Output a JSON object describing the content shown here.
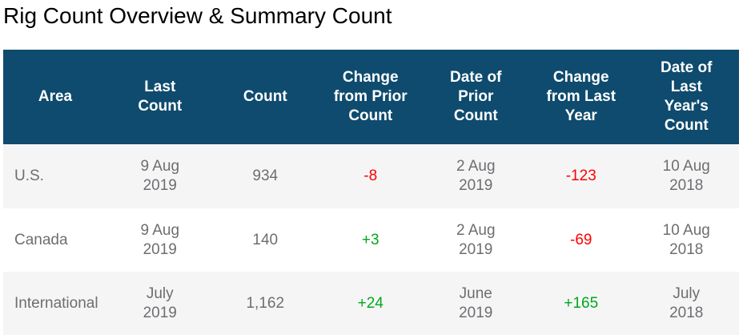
{
  "page": {
    "title": "Rig Count Overview & Summary Count"
  },
  "colors": {
    "header_bg": "#0e4b6e",
    "header_text": "#ffffff",
    "body_text": "#6d6e71",
    "row_alt_bg": "#f5f5f6",
    "positive": "#00a81c",
    "negative": "#ff0000"
  },
  "table": {
    "columns": [
      {
        "label": "Area"
      },
      {
        "label": "Last\nCount"
      },
      {
        "label": "Count"
      },
      {
        "label": "Change\nfrom Prior\nCount"
      },
      {
        "label": "Date of\nPrior\nCount"
      },
      {
        "label": "Change\nfrom Last\nYear"
      },
      {
        "label": "Date of\nLast\nYear's\nCount"
      }
    ],
    "rows": [
      {
        "area": "U.S.",
        "last_count_date": "9 Aug\n2019",
        "count": "934",
        "change_from_prior": "-8",
        "date_of_prior": "2 Aug\n2019",
        "change_from_last_year": "-123",
        "date_of_last_year": "10 Aug\n2018"
      },
      {
        "area": "Canada",
        "last_count_date": "9 Aug\n2019",
        "count": "140",
        "change_from_prior": "+3",
        "date_of_prior": "2 Aug\n2019",
        "change_from_last_year": "-69",
        "date_of_last_year": "10 Aug\n2018"
      },
      {
        "area": "International",
        "last_count_date": "July\n2019",
        "count": "1,162",
        "change_from_prior": "+24",
        "date_of_prior": "June\n2019",
        "change_from_last_year": "+165",
        "date_of_last_year": "July\n2018"
      }
    ]
  },
  "chart_data": {
    "type": "table",
    "title": "Rig Count Overview & Summary Count",
    "columns": [
      "Area",
      "Last Count",
      "Count",
      "Change from Prior Count",
      "Date of Prior Count",
      "Change from Last Year",
      "Date of Last Year's Count"
    ],
    "rows": [
      [
        "U.S.",
        "9 Aug 2019",
        934,
        -8,
        "2 Aug 2019",
        -123,
        "10 Aug 2018"
      ],
      [
        "Canada",
        "9 Aug 2019",
        140,
        3,
        "2 Aug 2019",
        -69,
        "10 Aug 2018"
      ],
      [
        "International",
        "July 2019",
        1162,
        24,
        "June 2019",
        165,
        "July 2018"
      ]
    ]
  }
}
